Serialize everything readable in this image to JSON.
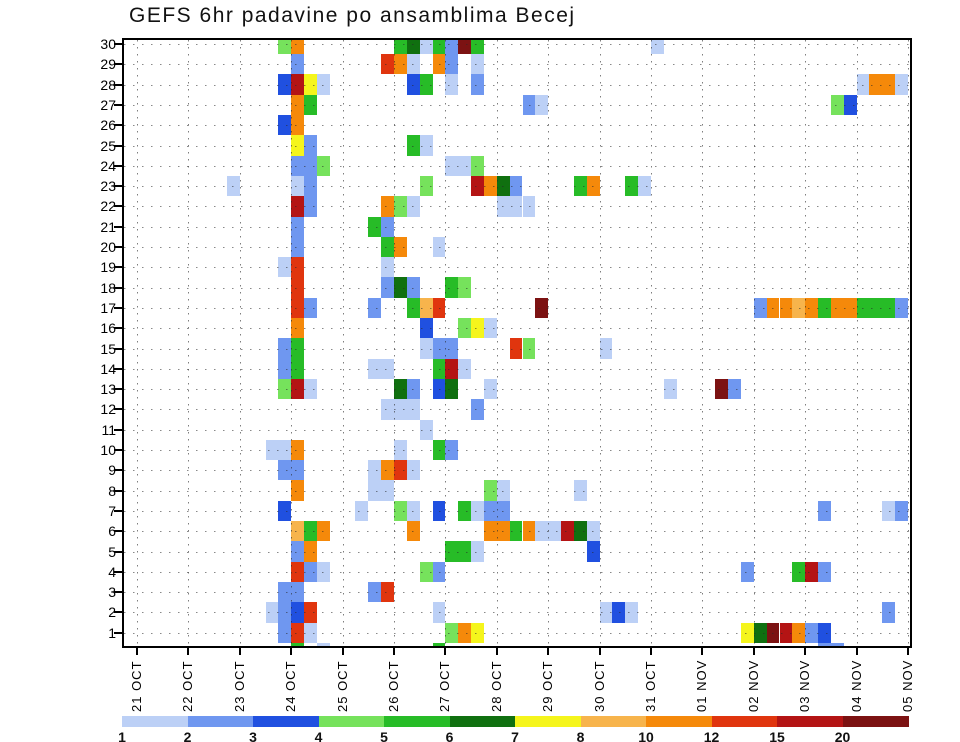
{
  "title": "GEFS 6hr padavine po ansamblima Becej",
  "chart_data": {
    "type": "heatmap",
    "title": "GEFS 6hr padavine po ansamblima Becej",
    "description": "6-hourly precipitation per GEFS ensemble member (rows 1-30) vs time",
    "x_axis": {
      "labels": [
        "21 OCT",
        "22 OCT",
        "23 OCT",
        "24 OCT",
        "25 OCT",
        "26 OCT",
        "27 OCT",
        "28 OCT",
        "29 OCT",
        "30 OCT",
        "31 OCT",
        "01 NOV",
        "02 NOV",
        "03 NOV",
        "04 NOV",
        "05 NOV"
      ],
      "steps_per_day": 4,
      "step_hours": 6
    },
    "y_axis": {
      "labels": [
        "30",
        "29",
        "28",
        "27",
        "26",
        "25",
        "24",
        "23",
        "22",
        "21",
        "20",
        "19",
        "18",
        "17",
        "16",
        "15",
        "14",
        "13",
        "12",
        "11",
        "10",
        "9",
        "8",
        "7",
        "6",
        "5",
        "4",
        "3",
        "2",
        "1"
      ],
      "ensemble_members": 30
    },
    "colorbar": {
      "tick_labels": [
        "1",
        "2",
        "3",
        "4",
        "5",
        "6",
        "7",
        "8",
        "10",
        "12",
        "15",
        "20"
      ],
      "colors": [
        "#bcd0f6",
        "#6f97f0",
        "#2050e0",
        "#76e25c",
        "#27bc27",
        "#107010",
        "#f5f51c",
        "#f7b44c",
        "#f5890a",
        "#e0350e",
        "#b41414",
        "#7c1212"
      ]
    },
    "cells": [
      [
        30,
        11,
        3
      ],
      [
        30,
        12,
        8
      ],
      [
        30,
        20,
        4
      ],
      [
        30,
        21,
        5
      ],
      [
        30,
        22,
        0
      ],
      [
        30,
        23,
        4
      ],
      [
        30,
        24,
        1
      ],
      [
        30,
        25,
        11
      ],
      [
        30,
        26,
        4
      ],
      [
        30,
        40,
        0
      ],
      [
        29,
        12,
        1
      ],
      [
        29,
        19,
        9
      ],
      [
        29,
        20,
        8
      ],
      [
        29,
        21,
        0
      ],
      [
        29,
        23,
        8
      ],
      [
        29,
        24,
        1
      ],
      [
        29,
        26,
        0
      ],
      [
        28,
        11,
        2
      ],
      [
        28,
        12,
        10
      ],
      [
        28,
        13,
        6
      ],
      [
        28,
        14,
        0
      ],
      [
        28,
        21,
        2
      ],
      [
        28,
        22,
        4
      ],
      [
        28,
        24,
        0
      ],
      [
        28,
        26,
        1
      ],
      [
        28,
        56,
        0
      ],
      [
        28,
        57,
        8
      ],
      [
        28,
        58,
        8
      ],
      [
        28,
        59,
        0
      ],
      [
        27,
        12,
        8
      ],
      [
        27,
        13,
        4
      ],
      [
        27,
        30,
        1
      ],
      [
        27,
        31,
        0
      ],
      [
        27,
        54,
        3
      ],
      [
        27,
        55,
        2
      ],
      [
        26,
        11,
        2
      ],
      [
        26,
        12,
        8
      ],
      [
        25,
        12,
        6
      ],
      [
        25,
        13,
        1
      ],
      [
        25,
        21,
        4
      ],
      [
        25,
        22,
        0
      ],
      [
        24,
        12,
        1
      ],
      [
        24,
        13,
        1
      ],
      [
        24,
        14,
        3
      ],
      [
        24,
        24,
        0
      ],
      [
        24,
        25,
        0
      ],
      [
        24,
        26,
        3
      ],
      [
        23,
        7,
        0
      ],
      [
        23,
        12,
        0
      ],
      [
        23,
        13,
        1
      ],
      [
        23,
        22,
        3
      ],
      [
        23,
        26,
        10
      ],
      [
        23,
        27,
        8
      ],
      [
        23,
        28,
        5
      ],
      [
        23,
        29,
        1
      ],
      [
        23,
        34,
        4
      ],
      [
        23,
        35,
        8
      ],
      [
        23,
        38,
        4
      ],
      [
        23,
        39,
        0
      ],
      [
        22,
        12,
        10
      ],
      [
        22,
        13,
        1
      ],
      [
        22,
        19,
        8
      ],
      [
        22,
        20,
        3
      ],
      [
        22,
        21,
        0
      ],
      [
        22,
        28,
        0
      ],
      [
        22,
        29,
        0
      ],
      [
        22,
        30,
        0
      ],
      [
        21,
        12,
        1
      ],
      [
        21,
        18,
        4
      ],
      [
        21,
        19,
        1
      ],
      [
        20,
        12,
        1
      ],
      [
        20,
        19,
        4
      ],
      [
        20,
        20,
        8
      ],
      [
        20,
        23,
        0
      ],
      [
        19,
        11,
        0
      ],
      [
        19,
        12,
        9
      ],
      [
        19,
        19,
        0
      ],
      [
        18,
        12,
        9
      ],
      [
        18,
        19,
        1
      ],
      [
        18,
        20,
        5
      ],
      [
        18,
        21,
        1
      ],
      [
        18,
        24,
        4
      ],
      [
        18,
        25,
        3
      ],
      [
        17,
        12,
        9
      ],
      [
        17,
        13,
        1
      ],
      [
        17,
        18,
        1
      ],
      [
        17,
        21,
        4
      ],
      [
        17,
        22,
        7
      ],
      [
        17,
        23,
        9
      ],
      [
        17,
        31,
        11
      ],
      [
        17,
        48,
        1
      ],
      [
        17,
        49,
        8
      ],
      [
        17,
        50,
        8
      ],
      [
        17,
        51,
        7
      ],
      [
        17,
        52,
        8
      ],
      [
        17,
        53,
        4
      ],
      [
        17,
        54,
        8
      ],
      [
        17,
        55,
        8
      ],
      [
        17,
        56,
        4
      ],
      [
        17,
        57,
        4
      ],
      [
        17,
        58,
        4
      ],
      [
        17,
        59,
        1
      ],
      [
        16,
        12,
        8
      ],
      [
        16,
        22,
        2
      ],
      [
        16,
        25,
        3
      ],
      [
        16,
        26,
        6
      ],
      [
        16,
        27,
        0
      ],
      [
        15,
        11,
        1
      ],
      [
        15,
        12,
        4
      ],
      [
        15,
        22,
        0
      ],
      [
        15,
        23,
        1
      ],
      [
        15,
        24,
        1
      ],
      [
        15,
        29,
        9
      ],
      [
        15,
        30,
        3
      ],
      [
        15,
        36,
        0
      ],
      [
        14,
        11,
        1
      ],
      [
        14,
        12,
        4
      ],
      [
        14,
        18,
        0
      ],
      [
        14,
        19,
        0
      ],
      [
        14,
        23,
        4
      ],
      [
        14,
        24,
        10
      ],
      [
        14,
        25,
        0
      ],
      [
        13,
        11,
        3
      ],
      [
        13,
        12,
        10
      ],
      [
        13,
        13,
        0
      ],
      [
        13,
        20,
        5
      ],
      [
        13,
        21,
        1
      ],
      [
        13,
        23,
        2
      ],
      [
        13,
        24,
        5
      ],
      [
        13,
        27,
        0
      ],
      [
        13,
        41,
        0
      ],
      [
        13,
        45,
        11
      ],
      [
        13,
        46,
        1
      ],
      [
        12,
        19,
        0
      ],
      [
        12,
        20,
        0
      ],
      [
        12,
        21,
        0
      ],
      [
        12,
        26,
        1
      ],
      [
        11,
        22,
        0
      ],
      [
        10,
        10,
        0
      ],
      [
        10,
        11,
        0
      ],
      [
        10,
        12,
        8
      ],
      [
        10,
        20,
        0
      ],
      [
        10,
        23,
        4
      ],
      [
        10,
        24,
        1
      ],
      [
        9,
        11,
        1
      ],
      [
        9,
        12,
        1
      ],
      [
        9,
        18,
        0
      ],
      [
        9,
        19,
        8
      ],
      [
        9,
        20,
        9
      ],
      [
        9,
        21,
        0
      ],
      [
        8,
        12,
        8
      ],
      [
        8,
        18,
        0
      ],
      [
        8,
        19,
        0
      ],
      [
        8,
        27,
        3
      ],
      [
        8,
        28,
        0
      ],
      [
        8,
        34,
        0
      ],
      [
        7,
        11,
        2
      ],
      [
        7,
        17,
        0
      ],
      [
        7,
        20,
        3
      ],
      [
        7,
        21,
        0
      ],
      [
        7,
        23,
        2
      ],
      [
        7,
        25,
        4
      ],
      [
        7,
        26,
        0
      ],
      [
        7,
        27,
        1
      ],
      [
        7,
        28,
        1
      ],
      [
        7,
        53,
        1
      ],
      [
        7,
        58,
        0
      ],
      [
        7,
        59,
        1
      ],
      [
        6,
        12,
        7
      ],
      [
        6,
        13,
        4
      ],
      [
        6,
        14,
        8
      ],
      [
        6,
        21,
        8
      ],
      [
        6,
        27,
        8
      ],
      [
        6,
        28,
        8
      ],
      [
        6,
        29,
        4
      ],
      [
        6,
        30,
        8
      ],
      [
        6,
        31,
        0
      ],
      [
        6,
        32,
        0
      ],
      [
        6,
        33,
        10
      ],
      [
        6,
        34,
        5
      ],
      [
        6,
        35,
        0
      ],
      [
        5,
        12,
        1
      ],
      [
        5,
        13,
        8
      ],
      [
        5,
        24,
        4
      ],
      [
        5,
        25,
        4
      ],
      [
        5,
        26,
        0
      ],
      [
        5,
        35,
        2
      ],
      [
        4,
        12,
        9
      ],
      [
        4,
        13,
        1
      ],
      [
        4,
        14,
        0
      ],
      [
        4,
        22,
        3
      ],
      [
        4,
        23,
        1
      ],
      [
        4,
        47,
        1
      ],
      [
        4,
        51,
        4
      ],
      [
        4,
        52,
        10
      ],
      [
        4,
        53,
        1
      ],
      [
        3,
        11,
        1
      ],
      [
        3,
        12,
        1
      ],
      [
        3,
        18,
        1
      ],
      [
        3,
        19,
        9
      ],
      [
        2,
        10,
        0
      ],
      [
        2,
        11,
        1
      ],
      [
        2,
        12,
        2
      ],
      [
        2,
        13,
        9
      ],
      [
        2,
        23,
        0
      ],
      [
        2,
        36,
        0
      ],
      [
        2,
        37,
        2
      ],
      [
        2,
        38,
        0
      ],
      [
        2,
        58,
        1
      ],
      [
        1,
        11,
        1
      ],
      [
        1,
        12,
        9
      ],
      [
        1,
        13,
        0
      ],
      [
        1,
        24,
        3
      ],
      [
        1,
        25,
        8
      ],
      [
        1,
        26,
        6
      ],
      [
        1,
        47,
        6
      ],
      [
        1,
        48,
        5
      ],
      [
        1,
        49,
        11
      ],
      [
        1,
        50,
        10
      ],
      [
        1,
        51,
        8
      ],
      [
        1,
        52,
        1
      ],
      [
        1,
        53,
        2
      ],
      [
        0,
        12,
        4
      ],
      [
        0,
        14,
        0
      ],
      [
        0,
        23,
        4
      ],
      [
        0,
        53,
        1
      ],
      [
        0,
        54,
        1
      ]
    ]
  }
}
